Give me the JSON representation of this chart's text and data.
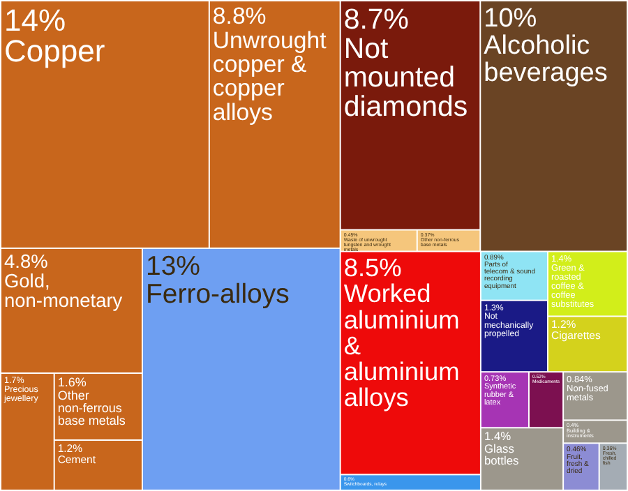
{
  "chart_data": {
    "type": "other",
    "categories": [
      "Copper",
      "Unwrought copper & copper alloys",
      "Gold, non-monetary",
      "Precious jewellery",
      "Other non-ferrous base metals",
      "Cement",
      "Ferro-alloys",
      "Not mounted diamonds",
      "Waste of unwrought tungsten and wrought metals",
      "Other non-ferrous base metals",
      "Alcoholic beverages",
      "Worked aluminium & aluminium alloys",
      "Switchboards, relays",
      "Parts of telecom & sound recording equipment",
      "Not mechanically propelled",
      "Green & roasted coffee & coffee substitutes",
      "Cigarettes",
      "Synthetic rubber & latex",
      "Medicaments",
      "Glass bottles",
      "Non-fused metals",
      "Building & instruments",
      "Fruit, fresh & dried",
      "Fresh, chilled fish"
    ],
    "values": [
      14,
      8.8,
      4.8,
      1.7,
      1.6,
      1.2,
      13,
      8.7,
      0.45,
      0.37,
      10,
      8.5,
      0.6,
      0.89,
      1.3,
      1.4,
      1.2,
      0.73,
      0.52,
      1.4,
      0.84,
      0.4,
      0.46,
      0.36
    ],
    "value_labels": [
      "14%",
      "8.8%",
      "4.8%",
      "1.7%",
      "1.6%",
      "1.2%",
      "13%",
      "8.7%",
      "0.45%",
      "0.37%",
      "10%",
      "8.5%",
      "0.6%",
      "0.89%",
      "1.3%",
      "1.4%",
      "1.2%",
      "0.73%",
      "0.52%",
      "1.4%",
      "0.84%",
      "0.4%",
      "0.46%",
      "0.36%"
    ],
    "colors": [
      "#c8661c",
      "#c8661c",
      "#c8661c",
      "#c8661c",
      "#c8661c",
      "#c8661c",
      "#6e9ff2",
      "#7a1a0c",
      "#f5c67c",
      "#f5c67c",
      "#6a4424",
      "#ee0a0a",
      "#3a96ec",
      "#8fe4f4",
      "#1a1a86",
      "#d2ee1a",
      "#d4d21c",
      "#a634b4",
      "#7c1050",
      "#9c978c",
      "#9c978c",
      "#9c978c",
      "#8c8cd4",
      "#a4acb4"
    ]
  }
}
